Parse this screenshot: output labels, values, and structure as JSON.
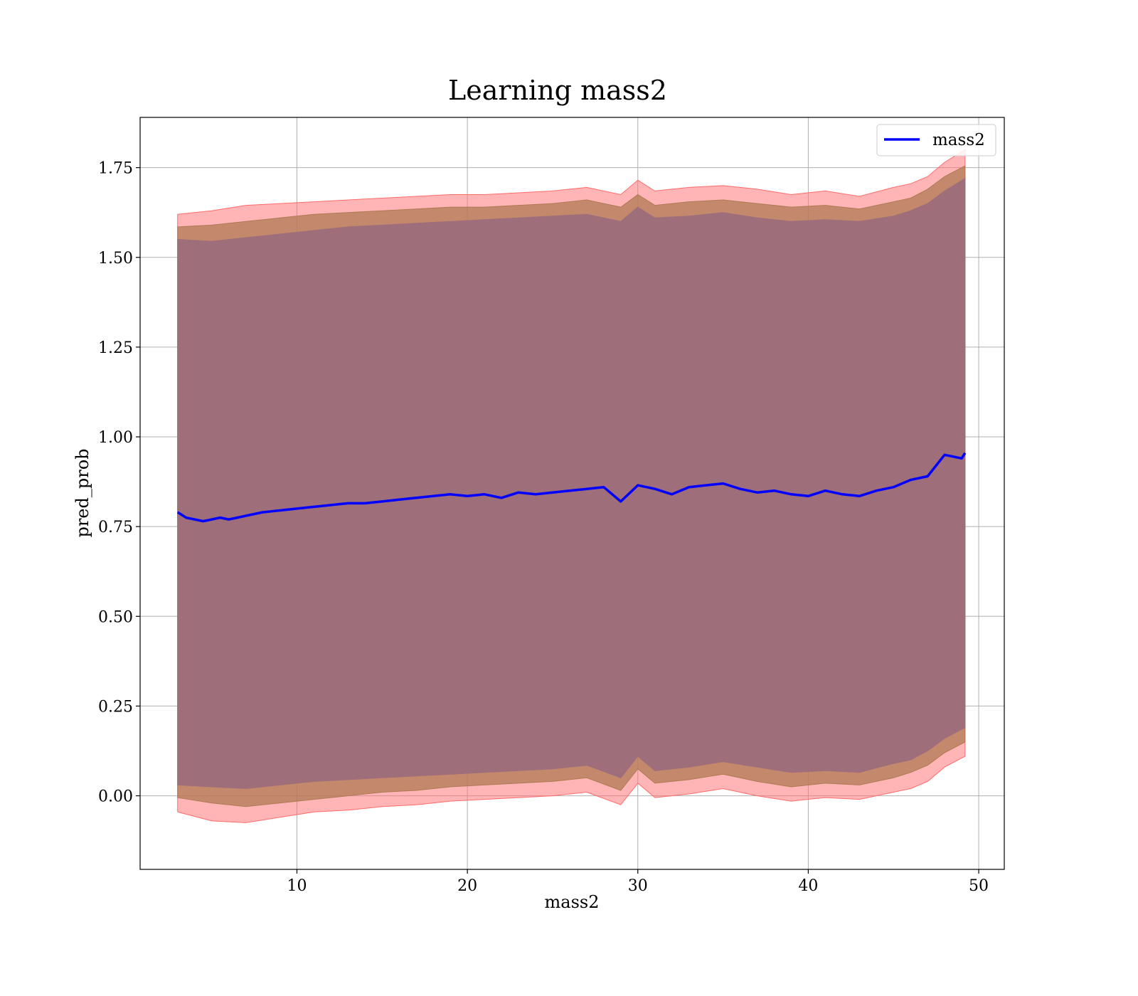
{
  "chart_data": {
    "type": "line",
    "title": "Learning mass2",
    "xlabel": "mass2",
    "ylabel": "pred_prob",
    "xlim": [
      0.8,
      51.5
    ],
    "ylim": [
      -0.205,
      1.89
    ],
    "xticks": [
      10,
      20,
      30,
      40,
      50
    ],
    "yticks": [
      0.0,
      0.25,
      0.5,
      0.75,
      1.0,
      1.25,
      1.5,
      1.75
    ],
    "xtick_labels": [
      "10",
      "20",
      "30",
      "40",
      "50"
    ],
    "ytick_labels": [
      "0.00",
      "0.25",
      "0.50",
      "0.75",
      "1.00",
      "1.25",
      "1.50",
      "1.75"
    ],
    "grid": true,
    "legend_position": "upper-right",
    "series": [
      {
        "name": "mass2",
        "color": "#0000ff",
        "x": [
          3.0,
          3.5,
          4.0,
          4.5,
          5.0,
          5.5,
          6.0,
          6.5,
          7.0,
          7.5,
          8.0,
          9.0,
          10.0,
          11.0,
          12.0,
          13.0,
          14.0,
          15.0,
          16.0,
          17.0,
          18.0,
          19.0,
          20.0,
          21.0,
          22.0,
          23.0,
          24.0,
          25.0,
          26.0,
          27.0,
          28.0,
          29.0,
          30.0,
          31.0,
          32.0,
          33.0,
          34.0,
          35.0,
          36.0,
          37.0,
          38.0,
          39.0,
          40.0,
          41.0,
          42.0,
          43.0,
          44.0,
          45.0,
          46.0,
          47.0,
          48.0,
          49.0,
          49.2
        ],
        "y": [
          0.79,
          0.775,
          0.77,
          0.765,
          0.77,
          0.775,
          0.77,
          0.775,
          0.78,
          0.785,
          0.79,
          0.795,
          0.8,
          0.805,
          0.81,
          0.815,
          0.815,
          0.82,
          0.825,
          0.83,
          0.835,
          0.84,
          0.835,
          0.84,
          0.83,
          0.845,
          0.84,
          0.845,
          0.85,
          0.855,
          0.86,
          0.82,
          0.865,
          0.855,
          0.84,
          0.86,
          0.865,
          0.87,
          0.855,
          0.845,
          0.85,
          0.84,
          0.835,
          0.85,
          0.84,
          0.835,
          0.85,
          0.86,
          0.88,
          0.89,
          0.95,
          0.94,
          0.955
        ]
      }
    ],
    "bands": [
      {
        "color": "#ff6b6b",
        "opacity": 0.5,
        "x": [
          3.0,
          5.0,
          7.0,
          9.0,
          11.0,
          13.0,
          15.0,
          17.0,
          19.0,
          21.0,
          23.0,
          25.0,
          27.0,
          29.0,
          30.0,
          31.0,
          33.0,
          35.0,
          37.0,
          39.0,
          41.0,
          43.0,
          45.0,
          46.0,
          47.0,
          48.0,
          49.2
        ],
        "upper": [
          1.62,
          1.63,
          1.645,
          1.65,
          1.655,
          1.66,
          1.665,
          1.67,
          1.675,
          1.675,
          1.68,
          1.685,
          1.695,
          1.675,
          1.715,
          1.685,
          1.695,
          1.7,
          1.69,
          1.675,
          1.685,
          1.67,
          1.695,
          1.705,
          1.725,
          1.765,
          1.8
        ],
        "lower": [
          -0.045,
          -0.07,
          -0.075,
          -0.06,
          -0.045,
          -0.04,
          -0.03,
          -0.025,
          -0.015,
          -0.01,
          -0.005,
          0.0,
          0.01,
          -0.025,
          0.035,
          -0.005,
          0.005,
          0.02,
          0.0,
          -0.015,
          -0.005,
          -0.01,
          0.01,
          0.02,
          0.04,
          0.08,
          0.11
        ]
      },
      {
        "color": "#b07a55",
        "opacity": 0.75,
        "x": [
          3.0,
          5.0,
          7.0,
          9.0,
          11.0,
          13.0,
          15.0,
          17.0,
          19.0,
          21.0,
          23.0,
          25.0,
          27.0,
          29.0,
          30.0,
          31.0,
          33.0,
          35.0,
          37.0,
          39.0,
          41.0,
          43.0,
          45.0,
          46.0,
          47.0,
          48.0,
          49.2
        ],
        "upper": [
          1.585,
          1.59,
          1.6,
          1.61,
          1.62,
          1.625,
          1.63,
          1.635,
          1.64,
          1.64,
          1.645,
          1.65,
          1.66,
          1.64,
          1.675,
          1.645,
          1.655,
          1.66,
          1.65,
          1.64,
          1.645,
          1.635,
          1.655,
          1.665,
          1.69,
          1.725,
          1.755
        ],
        "lower": [
          -0.005,
          -0.02,
          -0.03,
          -0.02,
          -0.01,
          0.0,
          0.01,
          0.015,
          0.025,
          0.03,
          0.035,
          0.04,
          0.05,
          0.015,
          0.075,
          0.035,
          0.045,
          0.06,
          0.04,
          0.025,
          0.035,
          0.03,
          0.05,
          0.065,
          0.085,
          0.12,
          0.15
        ]
      },
      {
        "color": "#9e6e7a",
        "opacity": 1,
        "x": [
          3.0,
          5.0,
          7.0,
          9.0,
          11.0,
          13.0,
          15.0,
          17.0,
          19.0,
          21.0,
          23.0,
          25.0,
          27.0,
          29.0,
          30.0,
          31.0,
          33.0,
          35.0,
          37.0,
          39.0,
          41.0,
          43.0,
          45.0,
          46.0,
          47.0,
          48.0,
          49.2
        ],
        "upper": [
          1.55,
          1.545,
          1.555,
          1.565,
          1.575,
          1.585,
          1.59,
          1.595,
          1.6,
          1.605,
          1.61,
          1.615,
          1.62,
          1.6,
          1.64,
          1.61,
          1.615,
          1.625,
          1.61,
          1.6,
          1.605,
          1.6,
          1.615,
          1.63,
          1.65,
          1.685,
          1.72
        ],
        "lower": [
          0.03,
          0.025,
          0.02,
          0.03,
          0.04,
          0.045,
          0.05,
          0.055,
          0.06,
          0.065,
          0.07,
          0.075,
          0.085,
          0.05,
          0.11,
          0.07,
          0.08,
          0.095,
          0.08,
          0.065,
          0.07,
          0.065,
          0.09,
          0.1,
          0.125,
          0.16,
          0.19
        ]
      }
    ]
  }
}
